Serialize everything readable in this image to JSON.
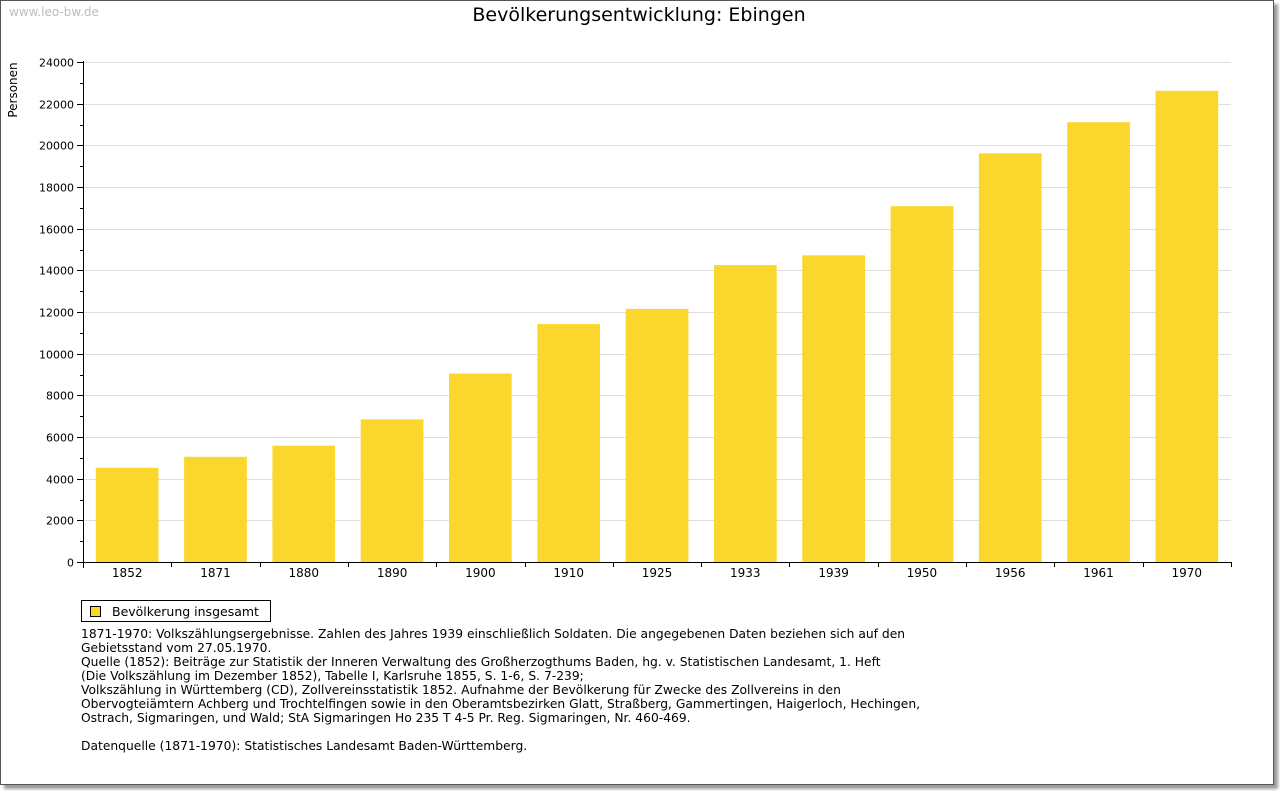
{
  "watermark": "www.leo-bw.de",
  "colors": {
    "bar": "#fbd72e",
    "grid": "#dedede",
    "axis": "#000000"
  },
  "chart_data": {
    "type": "bar",
    "title": "Bevölkerungsentwicklung: Ebingen",
    "xlabel": "",
    "ylabel": "Personen",
    "ylim": [
      0,
      24000
    ],
    "yticks": [
      0,
      2000,
      4000,
      6000,
      8000,
      10000,
      12000,
      14000,
      16000,
      18000,
      20000,
      22000,
      24000
    ],
    "grid": true,
    "legend_position": "bottom-left",
    "categories": [
      "1852",
      "1871",
      "1880",
      "1890",
      "1900",
      "1910",
      "1925",
      "1933",
      "1939",
      "1950",
      "1956",
      "1961",
      "1970"
    ],
    "series": [
      {
        "name": "Bevölkerung insgesamt",
        "values": [
          4520,
          5050,
          5580,
          6850,
          9050,
          11420,
          12150,
          14250,
          14720,
          17080,
          19620,
          21110,
          22620
        ]
      }
    ]
  },
  "notes": [
    "1871-1970: Volkszählungsergebnisse. Zahlen des Jahres 1939 einschließlich Soldaten. Die angegebenen Daten beziehen sich auf den",
    "Gebietsstand vom 27.05.1970.",
    "Quelle (1852): Beiträge zur Statistik der Inneren Verwaltung des Großherzogthums Baden, hg. v. Statistischen Landesamt, 1. Heft",
    "(Die Volkszählung im Dezember 1852), Tabelle I, Karlsruhe 1855, S. 1-6, S. 7-239;",
    "Volkszählung in Württemberg (CD), Zollvereinsstatistik 1852. Aufnahme der Bevölkerung für Zwecke des Zollvereins in den",
    "Obervogteiämtern Achberg und Trochtelfingen sowie in den Oberamtsbezirken Glatt, Straßberg, Gammertingen, Haigerloch, Hechingen,",
    "Ostrach, Sigmaringen, und Wald; StA Sigmaringen Ho 235 T 4-5 Pr. Reg. Sigmaringen, Nr. 460-469.",
    "",
    "Datenquelle (1871-1970): Statistisches Landesamt Baden-Württemberg."
  ]
}
